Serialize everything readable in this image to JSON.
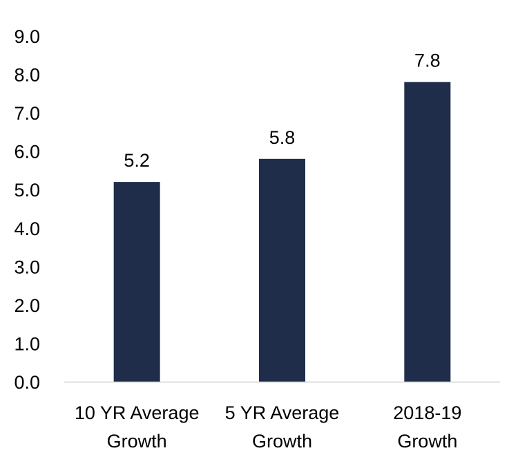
{
  "chart_data": {
    "type": "bar",
    "title": "",
    "xlabel": "",
    "ylabel": "",
    "categories": [
      [
        "10 YR Average",
        "Growth"
      ],
      [
        "5 YR Average",
        "Growth"
      ],
      [
        "2018-19",
        "Growth"
      ]
    ],
    "values": [
      5.2,
      5.8,
      7.8
    ],
    "data_labels": [
      "5.2",
      "5.8",
      "7.8"
    ],
    "yticks": [
      "0.0",
      "1.0",
      "2.0",
      "3.0",
      "4.0",
      "5.0",
      "6.0",
      "7.0",
      "8.0",
      "9.0"
    ],
    "ylim": [
      0,
      9
    ],
    "grid": false,
    "legend": "none",
    "bar_color": "#1f2d4b",
    "axis_color": "#d0d0d0"
  }
}
